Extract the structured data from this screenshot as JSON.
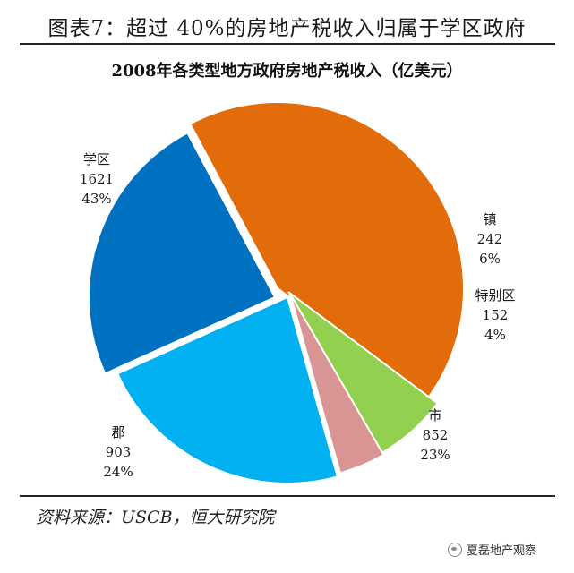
{
  "figure_title": "图表7：超过 40%的房地产税收入归属于学区政府",
  "source": "资料来源：USCB，恒大研究院",
  "watermark": "夏磊地产观察",
  "colors": {
    "school_district": "#E36C0A",
    "town": "#92D050",
    "special_district": "#D99594",
    "city": "#00B0F0",
    "county": "#0070C0"
  },
  "chart_data": {
    "type": "pie",
    "title": "2008年各类型地方政府房地产税收入（亿美元）",
    "slices": [
      {
        "name": "学区",
        "value": 1621,
        "percent": "43%",
        "color": "#E36C0A"
      },
      {
        "name": "镇",
        "value": 242,
        "percent": "6%",
        "color": "#92D050"
      },
      {
        "name": "特别区",
        "value": 152,
        "percent": "4%",
        "color": "#D99594"
      },
      {
        "name": "市",
        "value": 852,
        "percent": "23%",
        "color": "#00B0F0"
      },
      {
        "name": "郡",
        "value": 903,
        "percent": "24%",
        "color": "#0070C0"
      }
    ]
  }
}
